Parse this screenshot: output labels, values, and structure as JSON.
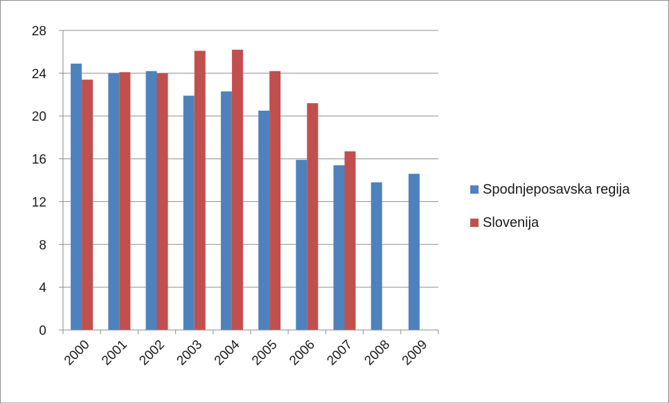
{
  "chart_data": {
    "type": "bar",
    "categories": [
      "2000",
      "2001",
      "2002",
      "2003",
      "2004",
      "2005",
      "2006",
      "2007",
      "2008",
      "2009"
    ],
    "series": [
      {
        "name": "Spodnjeposavska regija",
        "color": "#4f81bd",
        "values": [
          24.9,
          24.0,
          24.2,
          21.9,
          22.3,
          20.5,
          15.9,
          15.4,
          13.8,
          14.6
        ]
      },
      {
        "name": "Slovenija",
        "color": "#c0504d",
        "values": [
          23.4,
          24.1,
          24.0,
          26.1,
          26.2,
          24.2,
          21.2,
          16.7,
          null,
          null
        ]
      }
    ],
    "yticks": [
      "0",
      "4",
      "8",
      "12",
      "16",
      "20",
      "24",
      "28"
    ],
    "ylim": [
      0,
      28
    ],
    "grid": true,
    "legend_position": "right"
  }
}
